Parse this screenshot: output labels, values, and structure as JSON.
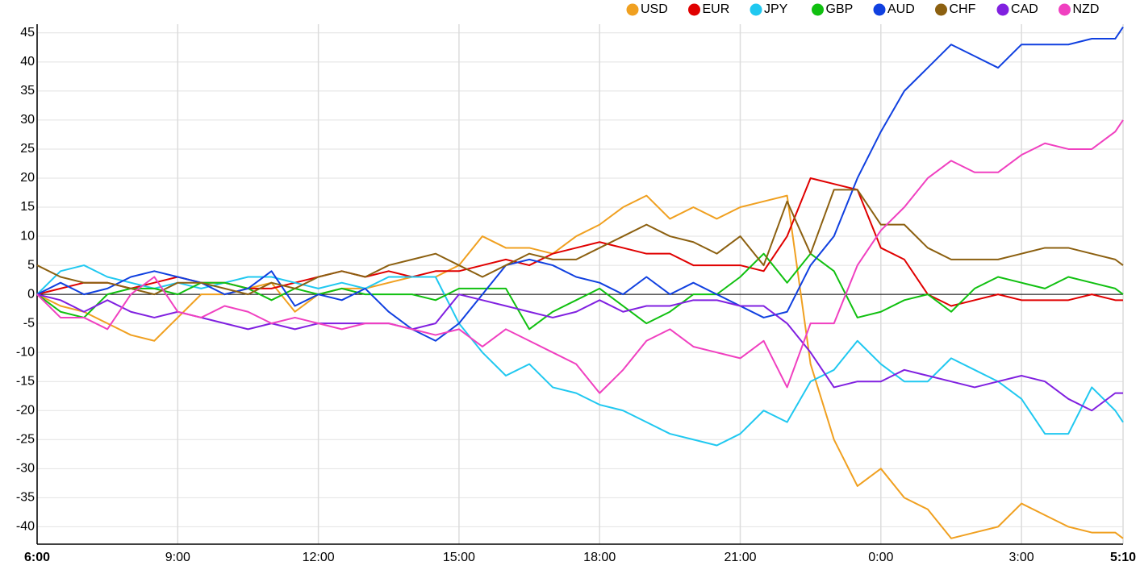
{
  "chart_data": {
    "type": "line",
    "x": [
      0,
      0.5,
      1,
      1.5,
      2,
      2.5,
      3,
      3.5,
      4,
      4.5,
      5,
      5.5,
      6,
      6.5,
      7,
      7.5,
      8,
      8.5,
      9,
      9.5,
      10,
      10.5,
      11,
      11.5,
      12,
      12.5,
      13,
      13.5,
      14,
      14.5,
      15,
      15.5,
      16,
      16.5,
      17,
      17.5,
      18,
      18.5,
      19,
      19.5,
      20,
      20.5,
      21,
      21.5,
      22,
      22.5,
      23,
      23.1667
    ],
    "xlim": [
      0,
      23.1667
    ],
    "xticks": [
      {
        "value": 0,
        "label": "6:00"
      },
      {
        "value": 3,
        "label": "9:00"
      },
      {
        "value": 6,
        "label": "12:00"
      },
      {
        "value": 9,
        "label": "15:00"
      },
      {
        "value": 12,
        "label": "18:00"
      },
      {
        "value": 15,
        "label": "21:00"
      },
      {
        "value": 18,
        "label": "0:00"
      },
      {
        "value": 21,
        "label": "3:00"
      },
      {
        "value": 23.1667,
        "label": "5:10"
      }
    ],
    "ylim": [
      -43,
      46.5
    ],
    "yticks": [
      -40,
      -35,
      -30,
      -25,
      -20,
      -15,
      -10,
      -5,
      0,
      5,
      10,
      15,
      20,
      25,
      30,
      35,
      40,
      45
    ],
    "grid": true,
    "series": [
      {
        "name": "USD",
        "color": "#f0a020",
        "values": [
          0,
          -2,
          -3,
          -5,
          -7,
          -8,
          -4,
          0,
          0,
          1,
          2,
          -3,
          0,
          1,
          1,
          2,
          3,
          3,
          5,
          10,
          8,
          8,
          7,
          10,
          12,
          15,
          17,
          13,
          15,
          13,
          15,
          16,
          17,
          -12,
          -25,
          -33,
          -30,
          -35,
          -37,
          -42,
          -41,
          -40,
          -36,
          -38,
          -40,
          -41,
          -41,
          -42
        ]
      },
      {
        "name": "EUR",
        "color": "#e00000",
        "values": [
          0,
          1,
          2,
          2,
          1,
          2,
          3,
          2,
          2,
          1,
          1,
          2,
          3,
          4,
          3,
          4,
          3,
          4,
          4,
          5,
          6,
          5,
          7,
          8,
          9,
          8,
          7,
          7,
          5,
          5,
          5,
          4,
          10,
          20,
          19,
          18,
          8,
          6,
          0,
          -2,
          -1,
          0,
          -1,
          -1,
          -1,
          0,
          -1,
          -1
        ]
      },
      {
        "name": "JPY",
        "color": "#20c8f0",
        "values": [
          0,
          4,
          5,
          3,
          2,
          1,
          2,
          1,
          2,
          3,
          3,
          2,
          1,
          2,
          1,
          3,
          3,
          3,
          -5,
          -10,
          -14,
          -12,
          -16,
          -17,
          -19,
          -20,
          -22,
          -24,
          -25,
          -26,
          -24,
          -20,
          -22,
          -15,
          -13,
          -8,
          -12,
          -15,
          -15,
          -11,
          -13,
          -15,
          -18,
          -24,
          -24,
          -16,
          -20,
          -22
        ]
      },
      {
        "name": "GBP",
        "color": "#10c010",
        "values": [
          0,
          -3,
          -4,
          0,
          1,
          1,
          0,
          2,
          2,
          1,
          -1,
          1,
          0,
          1,
          0,
          0,
          0,
          -1,
          1,
          1,
          1,
          -6,
          -3,
          -1,
          1,
          -2,
          -5,
          -3,
          0,
          0,
          3,
          7,
          2,
          7,
          4,
          -4,
          -3,
          -1,
          0,
          -3,
          1,
          3,
          2,
          1,
          3,
          2,
          1,
          0
        ]
      },
      {
        "name": "AUD",
        "color": "#1040e0",
        "values": [
          0,
          2,
          0,
          1,
          3,
          4,
          3,
          2,
          0,
          1,
          4,
          -2,
          0,
          -1,
          1,
          -3,
          -6,
          -8,
          -5,
          0,
          5,
          6,
          5,
          3,
          2,
          0,
          3,
          0,
          2,
          0,
          -2,
          -4,
          -3,
          5,
          10,
          20,
          28,
          35,
          39,
          43,
          41,
          39,
          43,
          43,
          43,
          44,
          44,
          46
        ]
      },
      {
        "name": "CHF",
        "color": "#8c6010",
        "values": [
          5,
          3,
          2,
          2,
          1,
          0,
          2,
          2,
          1,
          0,
          2,
          1,
          3,
          4,
          3,
          5,
          6,
          7,
          5,
          3,
          5,
          7,
          6,
          6,
          8,
          10,
          12,
          10,
          9,
          7,
          10,
          5,
          16,
          7,
          18,
          18,
          12,
          12,
          8,
          6,
          6,
          6,
          7,
          8,
          8,
          7,
          6,
          5
        ]
      },
      {
        "name": "CAD",
        "color": "#8020e0",
        "values": [
          0,
          -1,
          -3,
          -1,
          -3,
          -4,
          -3,
          -4,
          -5,
          -6,
          -5,
          -6,
          -5,
          -5,
          -5,
          -5,
          -6,
          -5,
          0,
          -1,
          -2,
          -3,
          -4,
          -3,
          -1,
          -3,
          -2,
          -2,
          -1,
          -1,
          -2,
          -2,
          -5,
          -10,
          -16,
          -15,
          -15,
          -13,
          -14,
          -15,
          -16,
          -15,
          -14,
          -15,
          -18,
          -20,
          -17,
          -17
        ]
      },
      {
        "name": "NZD",
        "color": "#f040c0",
        "values": [
          0,
          -4,
          -4,
          -6,
          0,
          3,
          -3,
          -4,
          -2,
          -3,
          -5,
          -4,
          -5,
          -6,
          -5,
          -5,
          -6,
          -7,
          -6,
          -9,
          -6,
          -8,
          -10,
          -12,
          -17,
          -13,
          -8,
          -6,
          -9,
          -10,
          -11,
          -8,
          -16,
          -5,
          -5,
          5,
          11,
          15,
          20,
          23,
          21,
          21,
          24,
          26,
          25,
          25,
          28,
          30
        ]
      }
    ]
  }
}
